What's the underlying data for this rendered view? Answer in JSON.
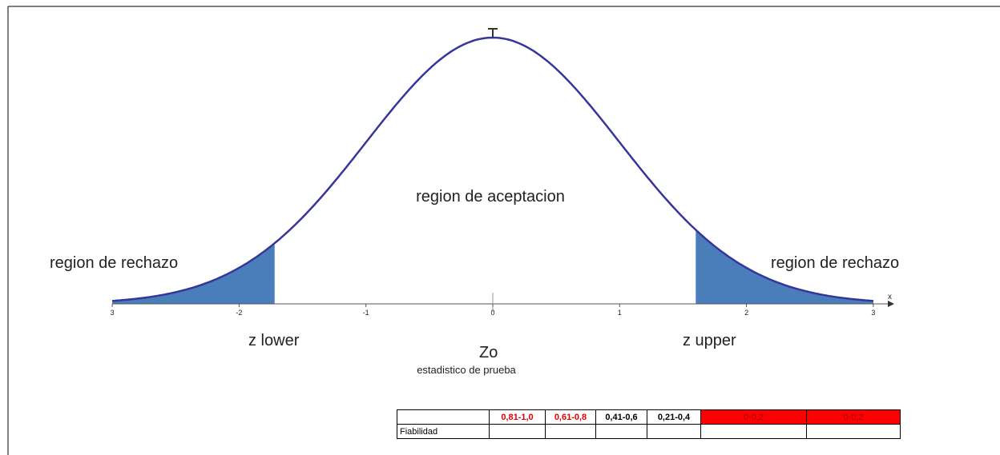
{
  "diagram": {
    "regions": {
      "accept": "region de aceptacion",
      "reject_left": "region de rechazo",
      "reject_right": "region de rechazo"
    },
    "bounds": {
      "lower": "z  lower",
      "upper": "z upper"
    },
    "statistic": {
      "symbol": "Zo",
      "caption": "estadistico de prueba"
    },
    "axis": {
      "label": "x",
      "ticks": [
        "3",
        "-2",
        "-1",
        "0",
        "1",
        "2",
        "3"
      ]
    }
  },
  "table": {
    "header": [
      "0,81-1,0",
      "0,61-0,8",
      "0,41-0,6",
      "0,21-0,4",
      "0-0,2",
      "0-0,2"
    ],
    "rows": [
      {
        "label": "Fiabilidad"
      }
    ]
  }
}
